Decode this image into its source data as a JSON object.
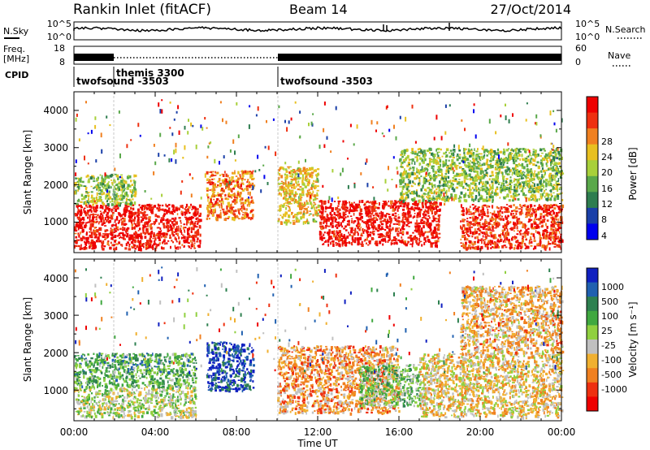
{
  "header": {
    "station": "Rankin Inlet (fitACF)",
    "beam": "Beam 14",
    "date": "27/Oct/2014"
  },
  "noise_panel": {
    "left_label": "N.Sky",
    "left_ticks": [
      "10^5",
      "10^0"
    ],
    "right_label": "N.Search",
    "right_ticks": [
      "10^5",
      "10^0"
    ]
  },
  "freq_panel": {
    "left_label_1": "Freq.",
    "left_label_2": "[MHz]",
    "left_ticks": [
      "18",
      "8"
    ],
    "right_label": "Nave",
    "right_ticks": [
      "60",
      "0"
    ]
  },
  "cpid_panel": {
    "label": "CPID",
    "entries": [
      {
        "text": "twofsound -3503",
        "start_hour": 0.0
      },
      {
        "text": "themis 3300",
        "start_hour": 2.0
      },
      {
        "text": "twofsound -3503",
        "start_hour": 10.0
      }
    ]
  },
  "power_panel": {
    "ylabel": "Slant Range [km]",
    "yticks": [
      "4000",
      "3000",
      "2000",
      "1000"
    ],
    "colorbar_label": "Power [dB]",
    "colorbar_ticks": [
      "28",
      "24",
      "20",
      "16",
      "12",
      "8",
      "4"
    ],
    "colors": [
      "#0000ee",
      "#1a3fa8",
      "#2e7d4f",
      "#5aa84a",
      "#a8d03a",
      "#e8c020",
      "#f08020",
      "#ee3010",
      "#ee0000"
    ]
  },
  "velocity_panel": {
    "ylabel": "Slant Range [km]",
    "yticks": [
      "4000",
      "3000",
      "2000",
      "1000"
    ],
    "colorbar_label": "Velocity [m s⁻¹]",
    "colorbar_ticks": [
      "1000",
      "500",
      "100",
      "25",
      "-25",
      "-100",
      "-500",
      "-1000"
    ],
    "colors": [
      "#1020c0",
      "#2060b0",
      "#2e8050",
      "#40a840",
      "#90d040",
      "#c0c0c0",
      "#f0b030",
      "#f08020",
      "#ee3010",
      "#ee0000"
    ]
  },
  "xaxis": {
    "label": "Time UT",
    "ticks": [
      "00:00",
      "04:00",
      "08:00",
      "12:00",
      "16:00",
      "20:00",
      "00:00"
    ]
  },
  "chart_data": [
    {
      "type": "heatmap",
      "title": "Rankin Inlet (fitACF) Beam 14 27/Oct/2014",
      "xlabel": "Time UT",
      "ylabel": "Slant Range [km]",
      "xlim": [
        "00:00",
        "24:00"
      ],
      "ylim": [
        180,
        4500
      ],
      "quantity": "Power [dB]",
      "zlim": [
        0,
        30
      ],
      "regions": [
        {
          "t0": 0.0,
          "t1": 6.2,
          "r0": 300,
          "r1": 1500,
          "value": 28
        },
        {
          "t0": 0.0,
          "t1": 3.0,
          "r0": 1500,
          "r1": 2300,
          "value": 14
        },
        {
          "t0": 6.5,
          "t1": 8.8,
          "r0": 1100,
          "r1": 2400,
          "value": 22
        },
        {
          "t0": 10.0,
          "t1": 12.0,
          "r0": 1000,
          "r1": 2500,
          "value": 18
        },
        {
          "t0": 12.0,
          "t1": 18.0,
          "r0": 400,
          "r1": 1600,
          "value": 28
        },
        {
          "t0": 16.0,
          "t1": 24.0,
          "r0": 1600,
          "r1": 3000,
          "value": 14
        },
        {
          "t0": 19.0,
          "t1": 24.0,
          "r0": 300,
          "r1": 1500,
          "value": 26
        }
      ]
    },
    {
      "type": "heatmap",
      "title": "Rankin Inlet (fitACF) Beam 14 27/Oct/2014",
      "xlabel": "Time UT",
      "ylabel": "Slant Range [km]",
      "xlim": [
        "00:00",
        "24:00"
      ],
      "ylim": [
        180,
        4500
      ],
      "quantity": "Velocity [m s-1]",
      "zlim": [
        -1000,
        1000
      ],
      "regions": [
        {
          "t0": 0.0,
          "t1": 6.0,
          "r0": 1100,
          "r1": 2000,
          "value": 300
        },
        {
          "t0": 0.0,
          "t1": 6.0,
          "r0": 300,
          "r1": 1100,
          "value": 0
        },
        {
          "t0": 6.5,
          "t1": 8.8,
          "r0": 1000,
          "r1": 2300,
          "value": 800
        },
        {
          "t0": 10.0,
          "t1": 16.0,
          "r0": 400,
          "r1": 2200,
          "value": -400
        },
        {
          "t0": 14.0,
          "t1": 17.0,
          "r0": 600,
          "r1": 1700,
          "value": 150
        },
        {
          "t0": 17.0,
          "t1": 24.0,
          "r0": 300,
          "r1": 2000,
          "value": -200
        },
        {
          "t0": 19.0,
          "t1": 24.0,
          "r0": 2000,
          "r1": 3800,
          "value": -300
        }
      ]
    }
  ]
}
